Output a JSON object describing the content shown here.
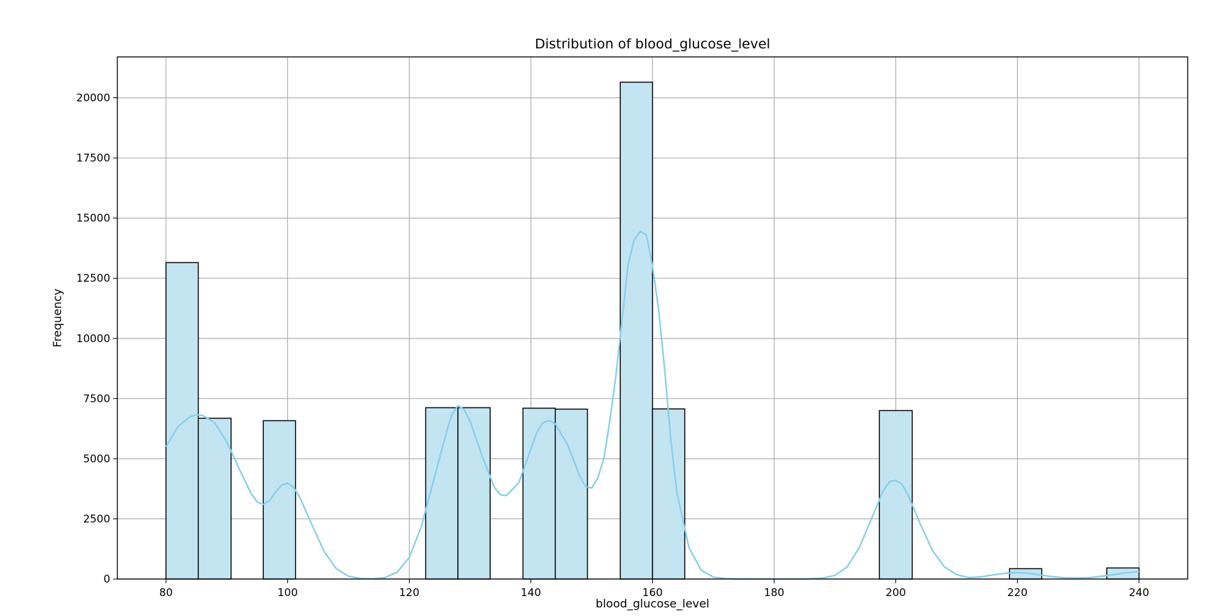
{
  "chart_data": {
    "type": "bar",
    "subtype": "histogram",
    "title": "Distribution of blood_glucose_level",
    "xlabel": "blood_glucose_level",
    "ylabel": "Frequency",
    "xlim": [
      72,
      248
    ],
    "ylim": [
      0,
      21700
    ],
    "xticks": [
      80,
      100,
      120,
      140,
      160,
      180,
      200,
      220,
      240
    ],
    "yticks": [
      0,
      2500,
      5000,
      7500,
      10000,
      12500,
      15000,
      17500,
      20000
    ],
    "grid": true,
    "bar_color": "#c3e5f2",
    "edge_color": "#000000",
    "kde_color": "#87ceeb",
    "bins": [
      {
        "x0": 80.0,
        "x1": 85.3,
        "count": 13150
      },
      {
        "x0": 85.3,
        "x1": 90.7,
        "count": 6680
      },
      {
        "x0": 90.7,
        "x1": 96.0,
        "count": 0
      },
      {
        "x0": 96.0,
        "x1": 101.3,
        "count": 6580
      },
      {
        "x0": 101.3,
        "x1": 106.7,
        "count": 0
      },
      {
        "x0": 106.7,
        "x1": 112.0,
        "count": 0
      },
      {
        "x0": 112.0,
        "x1": 117.3,
        "count": 0
      },
      {
        "x0": 117.3,
        "x1": 122.7,
        "count": 0
      },
      {
        "x0": 122.7,
        "x1": 128.0,
        "count": 7120
      },
      {
        "x0": 128.0,
        "x1": 133.3,
        "count": 7120
      },
      {
        "x0": 133.3,
        "x1": 138.7,
        "count": 0
      },
      {
        "x0": 138.7,
        "x1": 144.0,
        "count": 7100
      },
      {
        "x0": 144.0,
        "x1": 149.3,
        "count": 7060
      },
      {
        "x0": 149.3,
        "x1": 154.7,
        "count": 0
      },
      {
        "x0": 154.7,
        "x1": 160.0,
        "count": 20650
      },
      {
        "x0": 160.0,
        "x1": 165.3,
        "count": 7070
      },
      {
        "x0": 165.3,
        "x1": 170.7,
        "count": 0
      },
      {
        "x0": 170.7,
        "x1": 176.0,
        "count": 0
      },
      {
        "x0": 176.0,
        "x1": 181.3,
        "count": 0
      },
      {
        "x0": 181.3,
        "x1": 186.7,
        "count": 0
      },
      {
        "x0": 186.7,
        "x1": 192.0,
        "count": 0
      },
      {
        "x0": 192.0,
        "x1": 197.3,
        "count": 0
      },
      {
        "x0": 197.3,
        "x1": 202.7,
        "count": 7000
      },
      {
        "x0": 202.7,
        "x1": 208.0,
        "count": 0
      },
      {
        "x0": 208.0,
        "x1": 213.3,
        "count": 0
      },
      {
        "x0": 213.3,
        "x1": 218.7,
        "count": 0
      },
      {
        "x0": 218.7,
        "x1": 224.0,
        "count": 430
      },
      {
        "x0": 224.0,
        "x1": 229.3,
        "count": 0
      },
      {
        "x0": 229.3,
        "x1": 234.7,
        "count": 0
      },
      {
        "x0": 234.7,
        "x1": 240.0,
        "count": 460
      }
    ],
    "kde": {
      "x": [
        80,
        82,
        84,
        85,
        86,
        88,
        90,
        92,
        94,
        95,
        96,
        97,
        98,
        99,
        100,
        101,
        102,
        104,
        106,
        108,
        110,
        112,
        114,
        116,
        118,
        120,
        122,
        124,
        126,
        127,
        128,
        129,
        130,
        132,
        134,
        135,
        136,
        138,
        140,
        141,
        142,
        143,
        144,
        146,
        148,
        149,
        150,
        151,
        152,
        153,
        154,
        155,
        156,
        157,
        158,
        159,
        160,
        161,
        162,
        163,
        164,
        166,
        168,
        170,
        172,
        174,
        176,
        180,
        185,
        188,
        190,
        192,
        194,
        196,
        198,
        199,
        200,
        201,
        202,
        204,
        206,
        208,
        210,
        212,
        214,
        216,
        218,
        220,
        222,
        224,
        226,
        228,
        230,
        232,
        234,
        236,
        238,
        240
      ],
      "y": [
        5500,
        6350,
        6750,
        6830,
        6800,
        6500,
        5700,
        4600,
        3550,
        3200,
        3100,
        3250,
        3600,
        3900,
        3980,
        3800,
        3400,
        2250,
        1150,
        430,
        120,
        20,
        10,
        60,
        280,
        900,
        2200,
        4100,
        6000,
        6850,
        7200,
        7050,
        6550,
        5100,
        3800,
        3500,
        3470,
        4000,
        5400,
        6100,
        6500,
        6580,
        6450,
        5600,
        4300,
        3850,
        3780,
        4200,
        5000,
        6600,
        8500,
        10800,
        13100,
        14100,
        14450,
        14300,
        13000,
        11200,
        8700,
        5800,
        3600,
        1300,
        370,
        80,
        20,
        5,
        0,
        0,
        0,
        40,
        150,
        500,
        1300,
        2500,
        3700,
        4050,
        4100,
        3950,
        3500,
        2300,
        1200,
        500,
        180,
        60,
        90,
        170,
        240,
        270,
        230,
        160,
        90,
        50,
        40,
        60,
        120,
        190,
        260,
        310
      ]
    }
  }
}
